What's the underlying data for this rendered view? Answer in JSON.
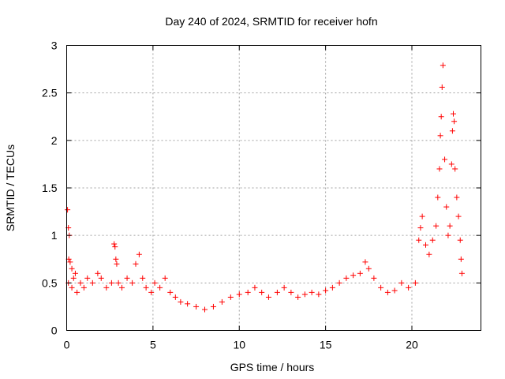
{
  "chart_data": {
    "type": "scatter",
    "title": "Day 240 of 2024, SRMTID for receiver hofn",
    "xlabel": "GPS time / hours",
    "ylabel": "SRMTID / TECUs",
    "xlim": [
      0,
      24
    ],
    "ylim": [
      0,
      3
    ],
    "xticks": [
      0,
      5,
      10,
      15,
      20
    ],
    "yticks": [
      0,
      0.5,
      1,
      1.5,
      2,
      2.5,
      3
    ],
    "xtick_labels": [
      "0",
      "5",
      "10",
      "15",
      "20"
    ],
    "ytick_labels": [
      "0",
      "0.5",
      "1",
      "1.5",
      "2",
      "2.5",
      "3"
    ],
    "grid": true,
    "marker": "+",
    "color": "#ff0000",
    "series": [
      {
        "name": "SRMTID",
        "points": [
          [
            0.05,
            1.27
          ],
          [
            0.1,
            1.08
          ],
          [
            0.15,
            1.0
          ],
          [
            0.12,
            0.75
          ],
          [
            0.2,
            0.72
          ],
          [
            0.3,
            0.65
          ],
          [
            0.5,
            0.6
          ],
          [
            0.4,
            0.55
          ],
          [
            0.1,
            0.5
          ],
          [
            0.3,
            0.45
          ],
          [
            0.6,
            0.4
          ],
          [
            0.8,
            0.5
          ],
          [
            1.0,
            0.45
          ],
          [
            1.2,
            0.55
          ],
          [
            1.5,
            0.5
          ],
          [
            1.8,
            0.6
          ],
          [
            2.0,
            0.55
          ],
          [
            2.3,
            0.45
          ],
          [
            2.6,
            0.5
          ],
          [
            2.75,
            0.91
          ],
          [
            2.8,
            0.88
          ],
          [
            2.85,
            0.75
          ],
          [
            2.9,
            0.7
          ],
          [
            3.0,
            0.5
          ],
          [
            3.2,
            0.45
          ],
          [
            3.5,
            0.55
          ],
          [
            3.8,
            0.5
          ],
          [
            4.0,
            0.7
          ],
          [
            4.2,
            0.8
          ],
          [
            4.4,
            0.55
          ],
          [
            4.6,
            0.45
          ],
          [
            4.9,
            0.4
          ],
          [
            5.1,
            0.5
          ],
          [
            5.4,
            0.45
          ],
          [
            5.7,
            0.55
          ],
          [
            6.0,
            0.4
          ],
          [
            6.3,
            0.35
          ],
          [
            6.6,
            0.3
          ],
          [
            7.0,
            0.28
          ],
          [
            7.5,
            0.25
          ],
          [
            8.0,
            0.22
          ],
          [
            8.5,
            0.25
          ],
          [
            9.0,
            0.3
          ],
          [
            9.5,
            0.35
          ],
          [
            10.0,
            0.38
          ],
          [
            10.5,
            0.4
          ],
          [
            10.9,
            0.45
          ],
          [
            11.3,
            0.4
          ],
          [
            11.7,
            0.35
          ],
          [
            12.2,
            0.4
          ],
          [
            12.6,
            0.45
          ],
          [
            13.0,
            0.4
          ],
          [
            13.4,
            0.35
          ],
          [
            13.8,
            0.38
          ],
          [
            14.2,
            0.4
          ],
          [
            14.6,
            0.38
          ],
          [
            15.0,
            0.42
          ],
          [
            15.4,
            0.45
          ],
          [
            15.8,
            0.5
          ],
          [
            16.2,
            0.55
          ],
          [
            16.6,
            0.58
          ],
          [
            17.0,
            0.6
          ],
          [
            17.3,
            0.72
          ],
          [
            17.5,
            0.65
          ],
          [
            17.8,
            0.55
          ],
          [
            18.2,
            0.45
          ],
          [
            18.6,
            0.4
          ],
          [
            19.0,
            0.42
          ],
          [
            19.4,
            0.5
          ],
          [
            19.8,
            0.45
          ],
          [
            20.2,
            0.5
          ],
          [
            20.4,
            0.95
          ],
          [
            20.5,
            1.08
          ],
          [
            20.6,
            1.2
          ],
          [
            20.8,
            0.9
          ],
          [
            21.0,
            0.8
          ],
          [
            21.2,
            0.95
          ],
          [
            21.4,
            1.1
          ],
          [
            21.5,
            1.4
          ],
          [
            21.6,
            1.7
          ],
          [
            21.65,
            2.05
          ],
          [
            21.7,
            2.25
          ],
          [
            21.75,
            2.56
          ],
          [
            21.8,
            2.79
          ],
          [
            21.9,
            1.8
          ],
          [
            22.0,
            1.3
          ],
          [
            22.1,
            1.0
          ],
          [
            22.2,
            1.1
          ],
          [
            22.3,
            1.75
          ],
          [
            22.35,
            2.1
          ],
          [
            22.4,
            2.28
          ],
          [
            22.45,
            2.2
          ],
          [
            22.5,
            1.7
          ],
          [
            22.6,
            1.4
          ],
          [
            22.7,
            1.2
          ],
          [
            22.8,
            0.95
          ],
          [
            22.85,
            0.75
          ],
          [
            22.9,
            0.6
          ]
        ]
      }
    ]
  }
}
